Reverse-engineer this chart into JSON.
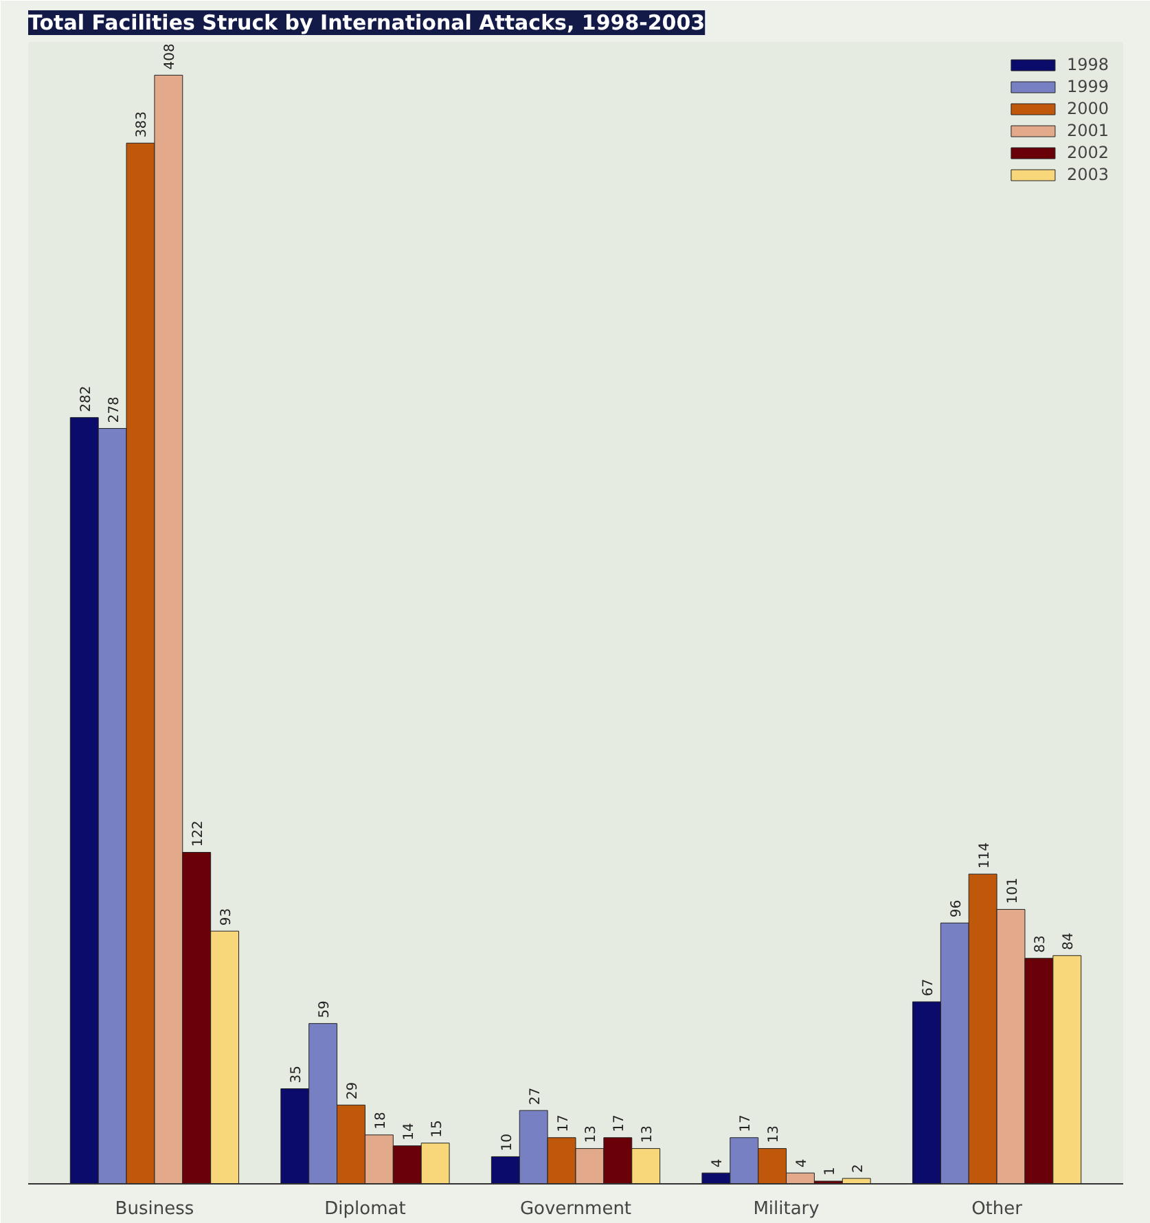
{
  "chart_data": {
    "type": "bar",
    "title": "Total Facilities Struck by International Attacks, 1998-2003",
    "categories": [
      "Business",
      "Diplomat",
      "Government",
      "Military",
      "Other"
    ],
    "series": [
      {
        "name": "1998",
        "color": "#0b0b6b",
        "values": [
          282,
          35,
          10,
          4,
          67
        ]
      },
      {
        "name": "1999",
        "color": "#7880c4",
        "values": [
          278,
          59,
          27,
          17,
          96
        ]
      },
      {
        "name": "2000",
        "color": "#c0580c",
        "values": [
          383,
          29,
          17,
          13,
          114
        ]
      },
      {
        "name": "2001",
        "color": "#e2a98a",
        "values": [
          408,
          18,
          13,
          4,
          101
        ]
      },
      {
        "name": "2002",
        "color": "#6a0008",
        "values": [
          122,
          14,
          17,
          1,
          83
        ]
      },
      {
        "name": "2003",
        "color": "#f7d77a",
        "values": [
          93,
          15,
          13,
          2,
          84
        ]
      }
    ],
    "data_labels": true,
    "legend": "top right",
    "grid": false
  }
}
